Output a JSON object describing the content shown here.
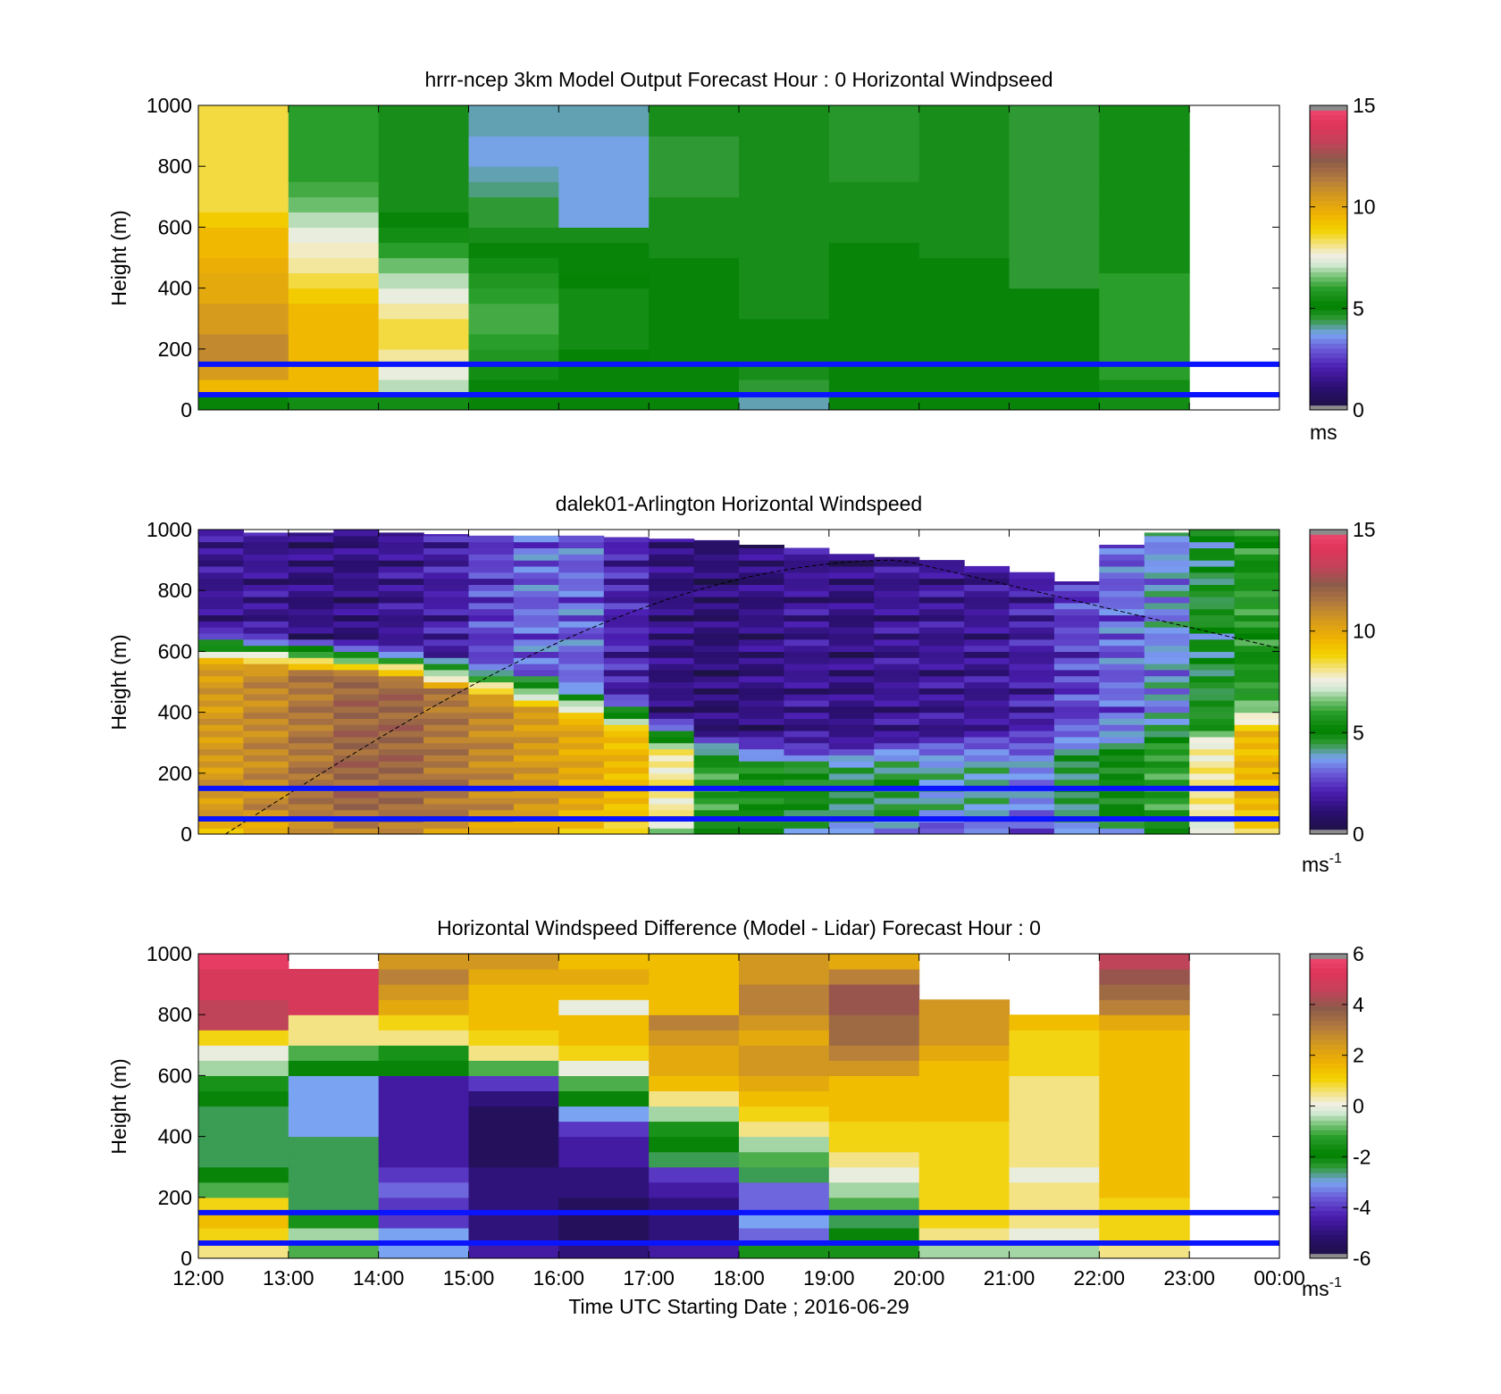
{
  "chart_data": [
    {
      "type": "heatmap",
      "title": "hrrr-ncep 3km Model Output   Forecast Hour : 0 Horizontal Windpseed",
      "ylabel": "Height (m)",
      "xlabel": "",
      "ylim": [
        0,
        1000
      ],
      "xlim_hours": [
        12,
        24
      ],
      "y_ticks": [
        "0",
        "200",
        "400",
        "600",
        "800",
        "1000"
      ],
      "colorbar": {
        "min": 0,
        "max": 15,
        "ticks": [
          "0",
          "5",
          "10",
          "15"
        ],
        "unit": "ms"
      },
      "reference_lines_m": [
        50,
        150
      ],
      "cell_time_start_hours": [
        12,
        13,
        14,
        15,
        16,
        17,
        18,
        19,
        20,
        21,
        22
      ],
      "height_levels_m": [
        25,
        75,
        125,
        175,
        225,
        275,
        325,
        375,
        425,
        475,
        525,
        575,
        625,
        675,
        725,
        775,
        825,
        875,
        925,
        975
      ],
      "values": [
        [
          5.0,
          5.5,
          5.5,
          5.0,
          5.0,
          5.0,
          4.0,
          5.0,
          5.0,
          5.0,
          5.5
        ],
        [
          9.5,
          9.5,
          7.0,
          5.0,
          5.0,
          5.0,
          4.5,
          5.0,
          5.0,
          5.0,
          5.5
        ],
        [
          10.5,
          9.5,
          7.5,
          5.5,
          5.0,
          5.0,
          4.8,
          5.0,
          5.0,
          5.0,
          6.0
        ],
        [
          11.0,
          9.5,
          8.0,
          5.8,
          5.2,
          5.0,
          5.0,
          5.0,
          5.0,
          5.0,
          6.0
        ],
        [
          11.0,
          9.5,
          8.5,
          6.0,
          5.5,
          5.0,
          5.0,
          5.0,
          5.0,
          5.0,
          6.0
        ],
        [
          10.5,
          9.5,
          8.5,
          6.2,
          5.5,
          5.0,
          5.0,
          5.0,
          5.0,
          5.0,
          6.0
        ],
        [
          10.5,
          9.5,
          8.0,
          6.2,
          5.5,
          5.0,
          4.8,
          5.0,
          5.0,
          5.0,
          6.0
        ],
        [
          10.0,
          9.0,
          7.5,
          6.0,
          5.5,
          5.0,
          4.8,
          5.0,
          5.0,
          5.0,
          6.0
        ],
        [
          10.0,
          8.5,
          7.0,
          5.8,
          5.2,
          5.0,
          4.8,
          5.0,
          5.0,
          4.5,
          6.0
        ],
        [
          9.8,
          8.0,
          6.5,
          5.5,
          5.0,
          5.0,
          4.8,
          5.0,
          5.0,
          4.5,
          5.5
        ],
        [
          9.5,
          7.8,
          6.0,
          5.0,
          5.0,
          4.8,
          4.8,
          5.0,
          4.8,
          4.5,
          5.5
        ],
        [
          9.5,
          7.5,
          5.5,
          4.8,
          4.8,
          4.8,
          4.8,
          4.8,
          4.8,
          4.5,
          5.5
        ],
        [
          9.0,
          7.0,
          5.0,
          4.5,
          3.8,
          4.8,
          4.8,
          4.8,
          4.8,
          4.5,
          5.5
        ],
        [
          8.5,
          6.5,
          4.8,
          4.5,
          3.8,
          4.8,
          4.8,
          4.8,
          4.8,
          4.5,
          5.5
        ],
        [
          8.5,
          6.2,
          4.8,
          4.2,
          3.8,
          4.5,
          4.8,
          4.8,
          4.8,
          4.5,
          5.5
        ],
        [
          8.5,
          6.0,
          4.8,
          4.0,
          3.8,
          4.5,
          4.8,
          4.6,
          4.8,
          4.5,
          5.5
        ],
        [
          8.5,
          6.0,
          4.8,
          3.8,
          3.8,
          4.5,
          4.8,
          4.6,
          4.8,
          4.5,
          5.5
        ],
        [
          8.5,
          6.0,
          4.8,
          3.8,
          3.8,
          4.5,
          4.8,
          4.6,
          4.8,
          4.5,
          5.5
        ],
        [
          8.5,
          6.0,
          4.8,
          4.0,
          4.0,
          4.8,
          4.8,
          4.6,
          4.8,
          4.5,
          5.5
        ],
        [
          8.5,
          6.0,
          4.8,
          4.0,
          4.0,
          4.8,
          4.8,
          4.6,
          4.8,
          4.5,
          5.5
        ]
      ]
    },
    {
      "type": "heatmap",
      "title": "dalek01-Arlington  Horizontal Windspeed",
      "ylabel": "Height (m)",
      "xlabel": "",
      "ylim": [
        0,
        1000
      ],
      "xlim_hours": [
        12,
        24
      ],
      "y_ticks": [
        "0",
        "200",
        "400",
        "600",
        "800",
        "1000"
      ],
      "colorbar": {
        "min": 0,
        "max": 15,
        "ticks": [
          "0",
          "5",
          "10",
          "15"
        ],
        "unit": "ms",
        "unit_exponent": "-1"
      },
      "reference_lines_m": [
        50,
        150
      ],
      "profile_interval_hours": 0.5,
      "approx_profile_speed_ms": {
        "times_hours": [
          12.0,
          12.5,
          13.0,
          13.5,
          14.0,
          14.5,
          15.0,
          15.5,
          16.0,
          16.5,
          17.0,
          17.5,
          18.0,
          18.5,
          19.0,
          19.5,
          20.0,
          20.5,
          21.0,
          21.5,
          22.0,
          22.5,
          23.0,
          23.5
        ],
        "below_jet_speed": [
          10.5,
          11,
          11.5,
          12,
          12,
          11.5,
          11,
          10.5,
          10,
          9.5,
          8,
          6,
          5.5,
          5,
          4.5,
          4.5,
          4,
          4,
          3.5,
          4.5,
          5,
          6,
          8,
          9.5
        ],
        "jet_top_m": [
          600,
          590,
          580,
          565,
          550,
          520,
          490,
          455,
          420,
          380,
          320,
          280,
          260,
          250,
          260,
          270,
          280,
          290,
          300,
          300,
          300,
          320,
          330,
          380
        ],
        "aloft_speed": [
          1.5,
          1.5,
          1.2,
          1.2,
          1.5,
          1.8,
          2.5,
          3,
          3,
          2,
          1.2,
          1,
          1.2,
          1.5,
          1.2,
          1.5,
          1.5,
          1.5,
          1.8,
          2.5,
          3,
          3.5,
          4.5,
          5.5
        ],
        "data_top_m": [
          1000,
          990,
          990,
          1000,
          990,
          985,
          980,
          980,
          980,
          975,
          970,
          965,
          950,
          940,
          920,
          910,
          900,
          880,
          860,
          830,
          950,
          990,
          1000,
          1000
        ]
      },
      "missing_data_color": "#8c8c8c"
    },
    {
      "type": "heatmap",
      "title": "Horizontal Windspeed Difference (Model - Lidar) Forecast Hour : 0",
      "xlabel": "Time UTC  Starting Date ; 2016-06-29",
      "ylabel": "Height (m)",
      "ylim": [
        0,
        1000
      ],
      "xlim_hours": [
        12,
        24
      ],
      "x_ticks": [
        "12:00",
        "13:00",
        "14:00",
        "15:00",
        "16:00",
        "17:00",
        "18:00",
        "19:00",
        "20:00",
        "21:00",
        "22:00",
        "23:00",
        "00:00"
      ],
      "y_ticks": [
        "0",
        "200",
        "400",
        "600",
        "800",
        "1000"
      ],
      "colorbar": {
        "min": -6,
        "max": 6,
        "ticks": [
          "-6",
          "-4",
          "-2",
          "0",
          "2",
          "4",
          "6"
        ],
        "unit": "ms",
        "unit_exponent": "-1"
      },
      "reference_lines_m": [
        50,
        150
      ],
      "cell_time_start_hours": [
        12,
        13,
        14,
        15,
        16,
        17,
        18,
        19,
        20,
        21,
        22
      ],
      "height_levels_m": [
        25,
        75,
        125,
        175,
        225,
        275,
        325,
        375,
        425,
        475,
        525,
        575,
        625,
        675,
        725,
        775,
        825,
        875,
        925,
        975
      ],
      "values": [
        [
          0.5,
          -1.0,
          -3.0,
          -4.5,
          -5.0,
          -4.5,
          -1.5,
          -1.5,
          -0.5,
          -0.5,
          0.5
        ],
        [
          1.0,
          -0.5,
          -3.0,
          -5.0,
          -5.5,
          -5.0,
          -3.5,
          -2.0,
          0.5,
          0.0,
          1.0
        ],
        [
          1.5,
          -1.5,
          -4.0,
          -5.0,
          -5.5,
          -5.0,
          -3.0,
          -2.5,
          1.0,
          0.5,
          1.0
        ],
        [
          1.0,
          -2.5,
          -4.0,
          -5.0,
          -5.5,
          -5.0,
          -3.5,
          -1.0,
          1.0,
          0.5,
          1.0
        ],
        [
          -1.0,
          -2.5,
          -3.5,
          -5.0,
          -5.0,
          -4.5,
          -3.5,
          -0.5,
          1.0,
          0.5,
          1.5
        ],
        [
          -2.0,
          -2.5,
          -4.0,
          -5.0,
          -5.0,
          -4.0,
          -2.5,
          0.0,
          1.0,
          0.0,
          1.5
        ],
        [
          -2.5,
          -2.5,
          -4.5,
          -5.5,
          -4.5,
          -2.5,
          -1.0,
          0.5,
          1.0,
          0.5,
          1.5
        ],
        [
          -2.5,
          -2.5,
          -4.5,
          -5.5,
          -4.5,
          -2.0,
          -0.5,
          1.0,
          1.0,
          0.5,
          1.5
        ],
        [
          -2.5,
          -3.0,
          -4.5,
          -5.5,
          -4.0,
          -1.5,
          0.5,
          1.0,
          1.0,
          0.5,
          1.5
        ],
        [
          -2.5,
          -3.0,
          -4.5,
          -5.5,
          -3.0,
          -0.5,
          1.0,
          1.5,
          1.5,
          0.5,
          1.5
        ],
        [
          -2.0,
          -3.0,
          -4.5,
          -5.0,
          -2.0,
          0.5,
          1.5,
          1.5,
          1.5,
          0.5,
          1.5
        ],
        [
          -1.5,
          -3.0,
          -4.5,
          -4.0,
          -1.0,
          1.5,
          2.0,
          1.5,
          1.5,
          0.5,
          1.5
        ],
        [
          -0.5,
          -2.0,
          -2.0,
          -1.0,
          0.0,
          2.0,
          2.5,
          2.5,
          1.5,
          1.0,
          1.5
        ],
        [
          0.0,
          -1.0,
          -1.5,
          0.5,
          1.0,
          2.0,
          2.5,
          3.0,
          2.0,
          1.0,
          1.5
        ],
        [
          1.0,
          0.5,
          0.5,
          1.0,
          1.5,
          2.5,
          2.0,
          3.5,
          2.5,
          1.0,
          1.5
        ],
        [
          4.5,
          0.5,
          1.0,
          1.5,
          1.5,
          3.0,
          2.5,
          3.5,
          2.5,
          1.5,
          2.0
        ],
        [
          4.5,
          5.0,
          2.0,
          1.5,
          0.0,
          1.5,
          3.0,
          4.0,
          2.5,
          null,
          3.0
        ],
        [
          5.0,
          5.0,
          2.5,
          1.5,
          1.5,
          1.5,
          3.0,
          4.0,
          null,
          null,
          3.5
        ],
        [
          5.0,
          5.0,
          3.0,
          2.0,
          2.0,
          1.5,
          2.5,
          3.0,
          null,
          null,
          4.0
        ],
        [
          5.5,
          null,
          2.5,
          2.5,
          1.5,
          1.5,
          2.5,
          2.0,
          null,
          null,
          4.5
        ]
      ]
    }
  ]
}
